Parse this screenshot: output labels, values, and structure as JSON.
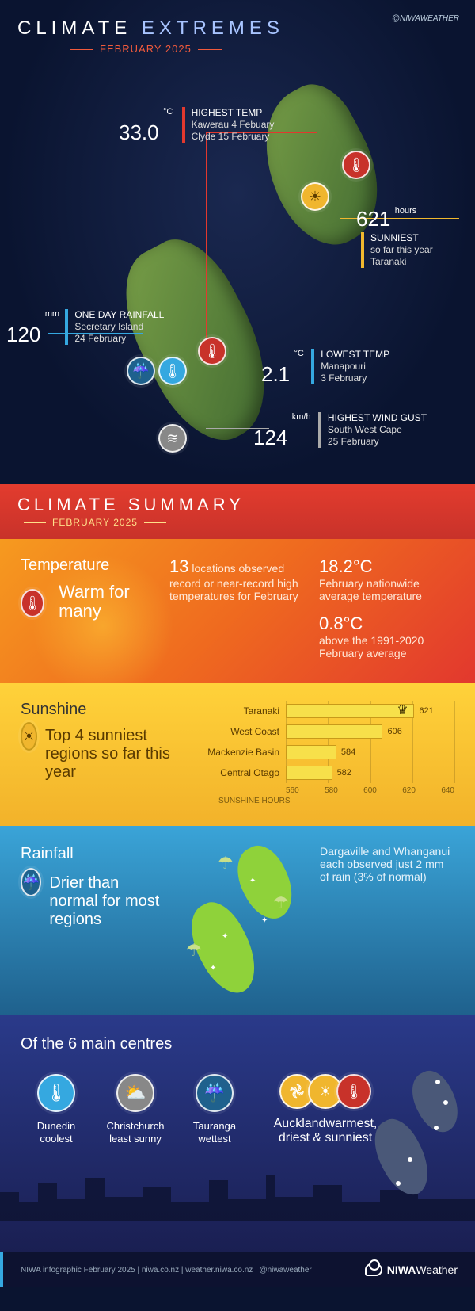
{
  "header": {
    "title_a": "CLIMATE",
    "title_b": "EXTREMES",
    "subtitle": "FEBRUARY 2025",
    "handle": "@NIWAWEATHER"
  },
  "extremes": {
    "highest_temp": {
      "value": "33.0",
      "unit": "°C",
      "label": "HIGHEST TEMP",
      "line1": "Kawerau 4 Febuary",
      "line2": "Clyde 15 February",
      "bar_color": "#e2382e"
    },
    "sunniest": {
      "value": "621",
      "unit": "hours",
      "label": "SUNNIEST",
      "line1": "so far this year",
      "line2": "Taranaki",
      "bar_color": "#f1b82e"
    },
    "one_day_rain": {
      "value": "120",
      "unit": "mm",
      "label": "ONE DAY RAINFALL",
      "line1": "Secretary Island",
      "line2": "24 February",
      "bar_color": "#35a8e0"
    },
    "lowest_temp": {
      "value": "2.1",
      "unit": "°C",
      "label": "LOWEST TEMP",
      "line1": "Manapouri",
      "line2": "3 February",
      "bar_color": "#35a8e0"
    },
    "wind": {
      "value": "124",
      "unit": "km/h",
      "label": "HIGHEST WIND GUST",
      "line1": "South West Cape",
      "line2": "25 February",
      "bar_color": "#aaaaaa"
    }
  },
  "summary_header": {
    "title": "CLIMATE SUMMARY",
    "subtitle": "FEBRUARY 2025"
  },
  "temperature": {
    "heading": "Temperature",
    "tagline": "Warm for many",
    "col1_num": "13",
    "col1_txt": " locations observed record or near-record high temperatures for February",
    "col2_a_num": "18.2°C",
    "col2_a_txt": "February nationwide average temperature",
    "col2_b_num": "0.8°C",
    "col2_b_txt": "above the 1991-2020 February average"
  },
  "sunshine": {
    "heading": "Sunshine",
    "tagline": "Top 4 sunniest regions so far this year",
    "axis_label": "SUNSHINE HOURS",
    "axis_min": 560,
    "axis_max": 640,
    "ticks": [
      "560",
      "580",
      "600",
      "620",
      "640"
    ],
    "bar_color": "#f7e04a",
    "rows": [
      {
        "label": "Taranaki",
        "value": 621,
        "crown": true
      },
      {
        "label": "West Coast",
        "value": 606,
        "crown": false
      },
      {
        "label": "Mackenzie Basin",
        "value": 584,
        "crown": false
      },
      {
        "label": "Central Otago",
        "value": 582,
        "crown": false
      }
    ]
  },
  "rainfall": {
    "heading": "Rainfall",
    "tagline": "Drier than normal for most regions",
    "note": "Dargaville and Whanganui each observed just 2 mm of rain (3% of normal)"
  },
  "centres": {
    "heading": "Of the 6 main centres",
    "items": [
      {
        "place": "Dunedin",
        "desc": "coolest",
        "icon": "therm-minus",
        "color": "#35a8e0"
      },
      {
        "place": "Christchurch",
        "desc": "least sunny",
        "icon": "cloud-sun",
        "color": "#888888"
      },
      {
        "place": "Tauranga",
        "desc": "wettest",
        "icon": "rain",
        "color": "#1f618d"
      }
    ],
    "auckland": {
      "place": "Auckland",
      "desc": "warmest, driest & sunniest",
      "icons": [
        {
          "name": "dry",
          "color": "#f0b62e"
        },
        {
          "name": "sun",
          "color": "#f0b62e"
        },
        {
          "name": "therm-plus",
          "color": "#c8322a"
        }
      ]
    }
  },
  "footer": {
    "text": "NIWA infographic February 2025  |  niwa.co.nz  |  weather.niwa.co.nz  |  @niwaweather",
    "brand_a": "NIWA",
    "brand_b": "Weather"
  },
  "colors": {
    "bg": "#0a1430",
    "red": "#c8322a",
    "orange": "#ef6a1f",
    "yellow": "#f0b62e",
    "blue": "#35a8e0",
    "darkblue": "#1f618d",
    "grey": "#888888"
  }
}
